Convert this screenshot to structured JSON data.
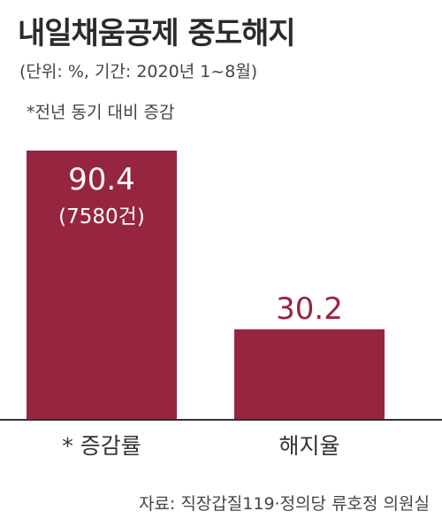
{
  "title": "내일채움공제 중도해지",
  "subtitle": "(단위: %, 기간: 2020년 1~8월)",
  "note": "*전년 동기 대비 증감",
  "source": "자료: 직장갑질119·정의당 류호정 의원실",
  "colors": {
    "bar": "#962640",
    "label_inside": "#ffffff",
    "label_outside": "#962640",
    "axis": "#333333"
  },
  "chart_data": {
    "type": "bar",
    "categories": [
      "* 증감률",
      "해지율"
    ],
    "values": [
      90.4,
      30.2
    ],
    "value_labels": [
      "90.4",
      "30.2"
    ],
    "sub_labels": [
      "(7580건)",
      ""
    ],
    "title": "내일채움공제 중도해지",
    "xlabel": "",
    "ylabel": "",
    "ylim": [
      0,
      90.4
    ],
    "grid": false,
    "legend": "none"
  }
}
